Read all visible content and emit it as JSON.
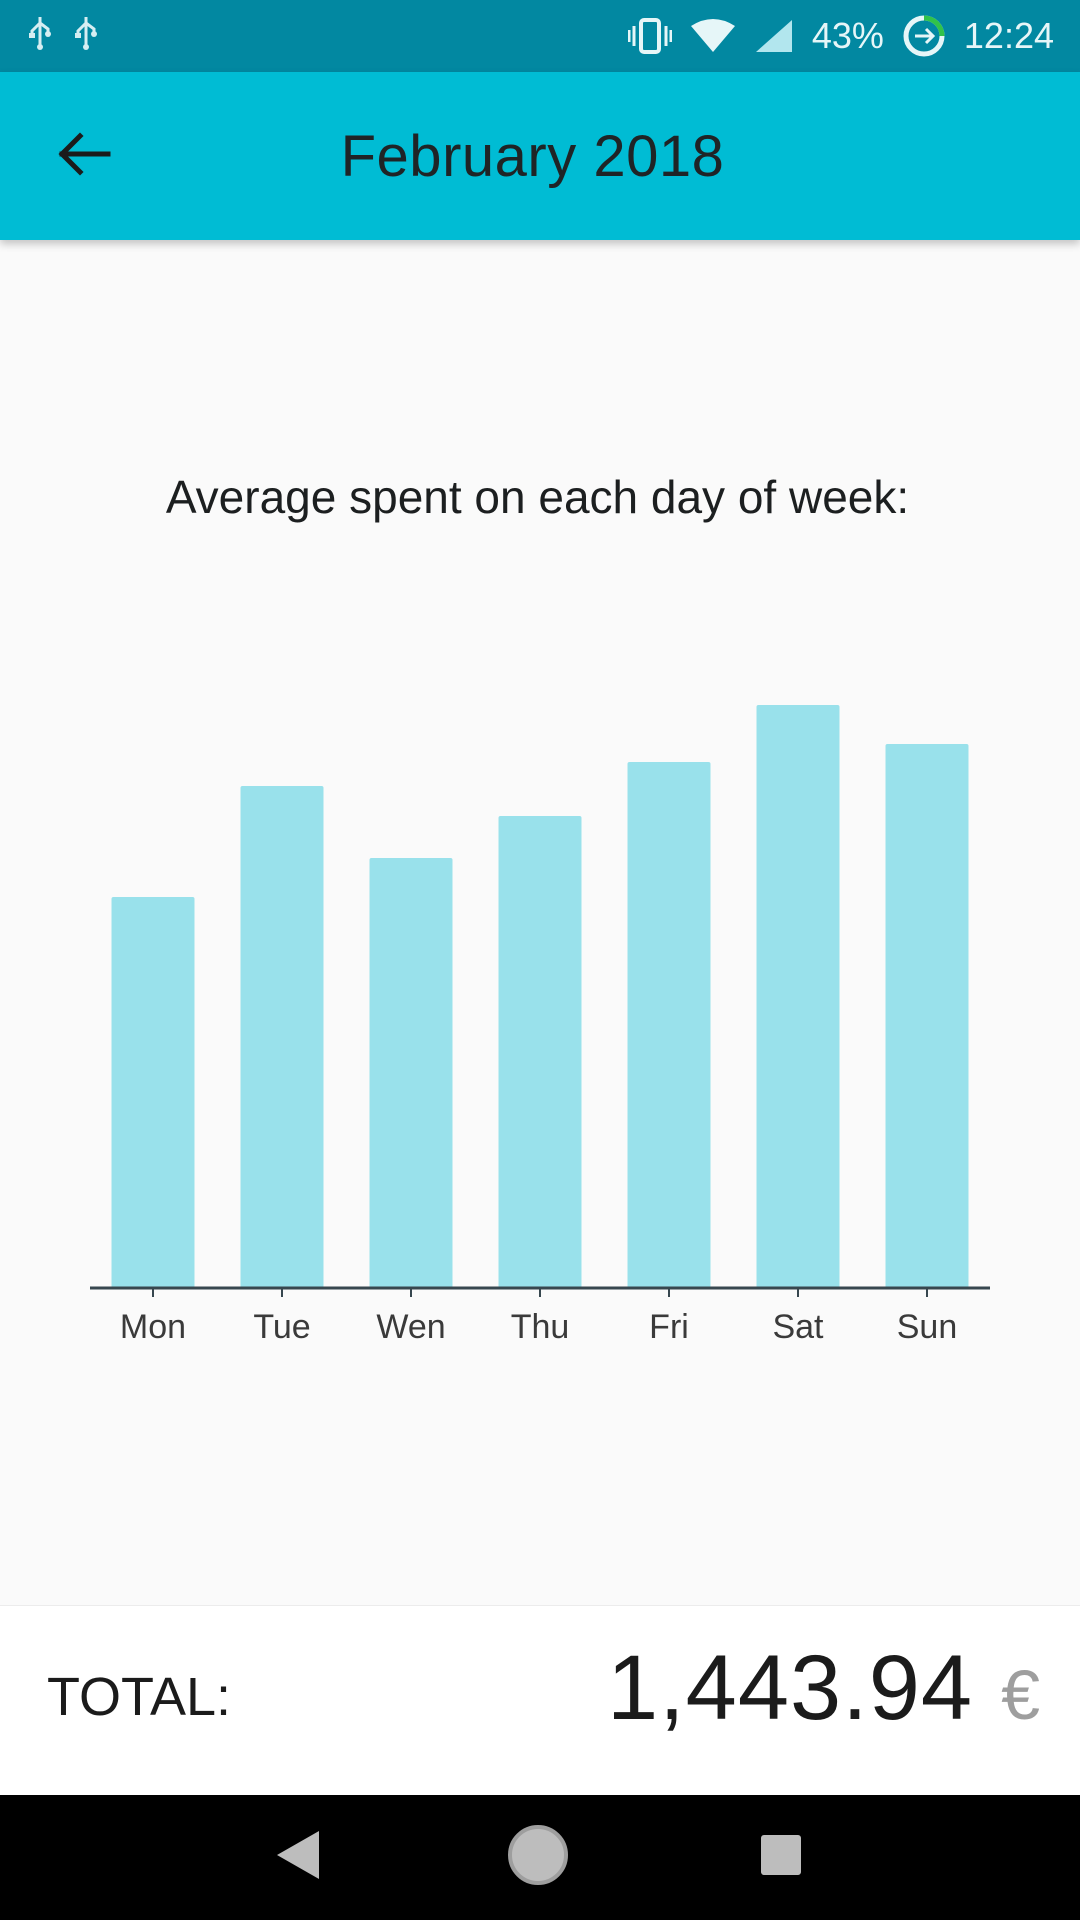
{
  "status_bar": {
    "battery": "43%",
    "time": "12:24",
    "icons": [
      "usb-icon",
      "usb-icon",
      "vibrate-icon",
      "wifi-icon",
      "cellular-signal-icon",
      "data-saver-icon"
    ]
  },
  "app_bar": {
    "title": "February 2018",
    "back_icon": "arrow-left-icon"
  },
  "chart_heading": "Average spent on each day of week:",
  "chart_data": {
    "type": "bar",
    "title": "Average spent on each day of week:",
    "categories": [
      "Mon",
      "Tue",
      "Wen",
      "Thu",
      "Fri",
      "Sat",
      "Sun"
    ],
    "values": [
      391,
      502,
      430,
      472,
      526,
      583,
      544
    ],
    "ylim": [
      0,
      600
    ],
    "grid": false,
    "bar_color": "#99e1eb",
    "axis_color": "#37474f"
  },
  "total": {
    "label": "TOTAL:",
    "amount": "1,443.94",
    "currency": "€"
  },
  "nav_bar": {
    "icons": [
      "back-triangle-icon",
      "home-circle-icon",
      "recents-square-icon"
    ]
  },
  "colors": {
    "status_bar": "#0288a1",
    "app_bar": "#00bcd4",
    "background": "#fafafa"
  }
}
